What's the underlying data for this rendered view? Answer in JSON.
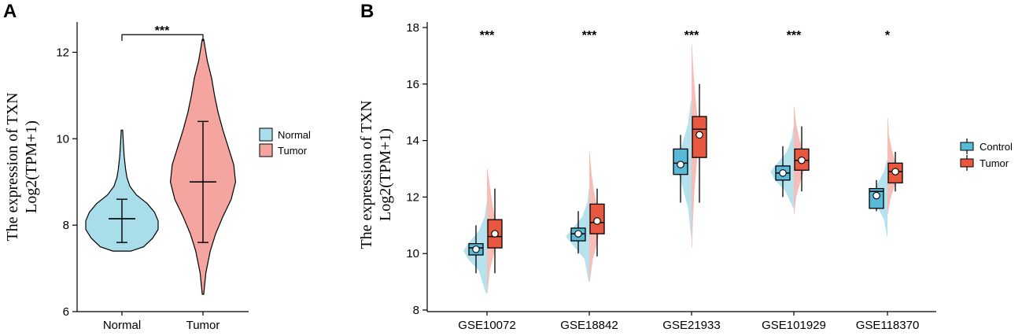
{
  "chart_data": [
    {
      "panel": "A",
      "type": "violin",
      "ylabel_line1": "The expression of TXN",
      "ylabel_line2": "Log2(TPM+1)",
      "ylim": [
        6,
        12.7
      ],
      "yticks": [
        6,
        8,
        10,
        12
      ],
      "categories": [
        "Normal",
        "Tumor"
      ],
      "colors": {
        "Normal": "#a8dde9",
        "Tumor": "#f4a5a0"
      },
      "groups": [
        {
          "name": "Normal",
          "min": 7.4,
          "max": 10.2,
          "q1": 7.6,
          "median": 8.15,
          "q3": 8.6,
          "density": [
            [
              7.4,
              0.25
            ],
            [
              7.5,
              0.6
            ],
            [
              7.7,
              0.85
            ],
            [
              7.9,
              1.0
            ],
            [
              8.1,
              1.0
            ],
            [
              8.3,
              0.9
            ],
            [
              8.5,
              0.7
            ],
            [
              8.7,
              0.4
            ],
            [
              8.9,
              0.22
            ],
            [
              9.1,
              0.14
            ],
            [
              9.3,
              0.1
            ],
            [
              9.6,
              0.06
            ],
            [
              9.9,
              0.04
            ],
            [
              10.2,
              0.02
            ]
          ]
        },
        {
          "name": "Tumor",
          "min": 6.4,
          "max": 12.3,
          "q1": 7.6,
          "median": 9.0,
          "q3": 10.4,
          "density": [
            [
              6.4,
              0.02
            ],
            [
              6.9,
              0.08
            ],
            [
              7.4,
              0.2
            ],
            [
              7.8,
              0.35
            ],
            [
              8.2,
              0.55
            ],
            [
              8.6,
              0.78
            ],
            [
              9.0,
              0.9
            ],
            [
              9.4,
              0.85
            ],
            [
              9.8,
              0.7
            ],
            [
              10.2,
              0.55
            ],
            [
              10.6,
              0.42
            ],
            [
              11.0,
              0.32
            ],
            [
              11.4,
              0.24
            ],
            [
              11.8,
              0.12
            ],
            [
              12.3,
              0.02
            ]
          ]
        }
      ],
      "significance": "***",
      "legend": [
        "Normal",
        "Tumor"
      ]
    },
    {
      "panel": "B",
      "type": "split-violin-box",
      "ylabel_line1": "The expression of TXN",
      "ylabel_line2": "Log2(TPM+1)",
      "ylim": [
        8,
        18
      ],
      "yticks": [
        8,
        10,
        12,
        14,
        16,
        18
      ],
      "categories": [
        "GSE10072",
        "GSE18842",
        "GSE21933",
        "GSE101929",
        "GSE118370"
      ],
      "significance": [
        "***",
        "***",
        "***",
        "***",
        "*"
      ],
      "legend": [
        "Control",
        "Tumor"
      ],
      "colors": {
        "Control": "#5ab9d6",
        "Tumor": "#e8573f",
        "ControlLight": "#a8dde9",
        "TumorLight": "#f6b3ac"
      },
      "series": [
        {
          "name": "Control",
          "boxes": [
            {
              "min": 9.3,
              "q1": 9.95,
              "median": 10.2,
              "q3": 10.35,
              "max": 11.0,
              "mean": 10.15
            },
            {
              "min": 10.0,
              "q1": 10.45,
              "median": 10.7,
              "q3": 10.9,
              "max": 11.5,
              "mean": 10.7
            },
            {
              "min": 11.8,
              "q1": 12.8,
              "median": 13.2,
              "q3": 13.7,
              "max": 14.2,
              "mean": 13.15
            },
            {
              "min": 12.0,
              "q1": 12.6,
              "median": 12.85,
              "q3": 13.1,
              "max": 13.8,
              "mean": 12.85
            },
            {
              "min": 11.5,
              "q1": 11.6,
              "median": 12.2,
              "q3": 12.3,
              "max": 12.6,
              "mean": 12.05
            }
          ]
        },
        {
          "name": "Tumor",
          "boxes": [
            {
              "min": 9.3,
              "q1": 10.2,
              "median": 10.6,
              "q3": 11.2,
              "max": 12.3,
              "mean": 10.7
            },
            {
              "min": 9.9,
              "q1": 10.7,
              "median": 11.1,
              "q3": 11.75,
              "max": 12.3,
              "mean": 11.15
            },
            {
              "min": 11.8,
              "q1": 13.4,
              "median": 14.4,
              "q3": 14.85,
              "max": 16.0,
              "mean": 14.2
            },
            {
              "min": 12.2,
              "q1": 12.95,
              "median": 13.3,
              "q3": 13.7,
              "max": 14.5,
              "mean": 13.3
            },
            {
              "min": 12.2,
              "q1": 12.5,
              "median": 12.9,
              "q3": 13.2,
              "max": 13.6,
              "mean": 12.9
            }
          ]
        }
      ],
      "densities": [
        {
          "control": [
            [
              8.6,
              0.05
            ],
            [
              9.4,
              0.35
            ],
            [
              9.8,
              0.8
            ],
            [
              10.1,
              1.0
            ],
            [
              10.4,
              0.75
            ],
            [
              10.8,
              0.35
            ],
            [
              11.3,
              0.1
            ],
            [
              11.8,
              0.02
            ]
          ],
          "tumor": [
            [
              8.6,
              0.02
            ],
            [
              9.4,
              0.12
            ],
            [
              10.0,
              0.3
            ],
            [
              10.6,
              0.45
            ],
            [
              11.2,
              0.35
            ],
            [
              11.8,
              0.22
            ],
            [
              12.4,
              0.12
            ],
            [
              13.0,
              0.02
            ]
          ]
        },
        {
          "control": [
            [
              9.0,
              0.03
            ],
            [
              9.8,
              0.2
            ],
            [
              10.3,
              0.7
            ],
            [
              10.6,
              1.0
            ],
            [
              10.9,
              0.7
            ],
            [
              11.3,
              0.3
            ],
            [
              11.8,
              0.08
            ],
            [
              12.3,
              0.02
            ]
          ],
          "tumor": [
            [
              9.0,
              0.02
            ],
            [
              9.8,
              0.15
            ],
            [
              10.4,
              0.35
            ],
            [
              11.0,
              0.45
            ],
            [
              11.6,
              0.35
            ],
            [
              12.2,
              0.2
            ],
            [
              12.8,
              0.1
            ],
            [
              13.6,
              0.02
            ]
          ]
        },
        {
          "control": [
            [
              10.6,
              0.02
            ],
            [
              11.6,
              0.15
            ],
            [
              12.4,
              0.4
            ],
            [
              13.0,
              0.6
            ],
            [
              13.5,
              0.55
            ],
            [
              14.0,
              0.35
            ],
            [
              14.6,
              0.15
            ],
            [
              15.4,
              0.03
            ]
          ],
          "tumor": [
            [
              10.2,
              0.02
            ],
            [
              11.2,
              0.06
            ],
            [
              12.2,
              0.12
            ],
            [
              13.2,
              0.22
            ],
            [
              14.0,
              0.3
            ],
            [
              14.8,
              0.25
            ],
            [
              15.6,
              0.16
            ],
            [
              16.6,
              0.07
            ],
            [
              17.4,
              0.02
            ]
          ]
        },
        {
          "control": [
            [
              11.6,
              0.03
            ],
            [
              12.2,
              0.35
            ],
            [
              12.6,
              0.8
            ],
            [
              12.9,
              1.0
            ],
            [
              13.2,
              0.7
            ],
            [
              13.6,
              0.3
            ],
            [
              14.1,
              0.08
            ],
            [
              14.5,
              0.02
            ]
          ],
          "tumor": [
            [
              11.4,
              0.02
            ],
            [
              12.0,
              0.1
            ],
            [
              12.6,
              0.3
            ],
            [
              13.1,
              0.5
            ],
            [
              13.5,
              0.45
            ],
            [
              14.0,
              0.25
            ],
            [
              14.6,
              0.1
            ],
            [
              15.2,
              0.02
            ]
          ]
        },
        {
          "control": [
            [
              10.6,
              0.02
            ],
            [
              11.2,
              0.15
            ],
            [
              11.7,
              0.45
            ],
            [
              12.1,
              0.6
            ],
            [
              12.5,
              0.4
            ],
            [
              12.9,
              0.15
            ],
            [
              13.3,
              0.03
            ]
          ],
          "tumor": [
            [
              11.4,
              0.02
            ],
            [
              11.9,
              0.12
            ],
            [
              12.4,
              0.3
            ],
            [
              12.8,
              0.42
            ],
            [
              13.2,
              0.35
            ],
            [
              13.7,
              0.18
            ],
            [
              14.2,
              0.06
            ],
            [
              14.8,
              0.02
            ]
          ]
        }
      ]
    }
  ]
}
